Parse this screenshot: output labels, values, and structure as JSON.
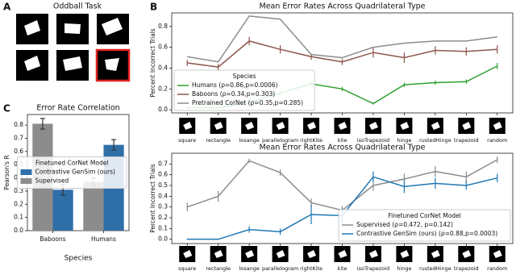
{
  "panel_a": {
    "label": "A",
    "title": "Oddball Task"
  },
  "chart_data": [
    {
      "type": "line",
      "panel": "B",
      "title": "Mean Error Rates Across Quadrilateral Type",
      "y_label": "Percent Incorrect Trials",
      "categories": [
        "square",
        "rectangle",
        "losange",
        "parallelogram",
        "rightKite",
        "kite",
        "isoTrapezoid",
        "hinge",
        "rustedHinge",
        "trapezoid",
        "random"
      ],
      "ylim": [
        -0.03,
        0.93
      ],
      "yticks": [
        {
          "value": 0,
          "label": "0.0"
        },
        0.2,
        0.4,
        0.6,
        0.8
      ],
      "legend": "lower left",
      "legend_title": "Species",
      "series": [
        {
          "name": "Humans (ρ=0.86,p=0.0006)",
          "color": "#2ca02c",
          "values": [
            0.02,
            0.02,
            0.07,
            0.16,
            0.25,
            0.2,
            0.06,
            0.24,
            0.26,
            0.27,
            0.42
          ],
          "errors": [
            0.01,
            0.01,
            0.02,
            0.02,
            0.02,
            0.02,
            0.01,
            0.02,
            0.02,
            0.02,
            0.03
          ]
        },
        {
          "name": "Baboons (ρ=0.34,p=0.303)",
          "color": "#8c564b",
          "values": [
            0.45,
            0.41,
            0.66,
            0.58,
            0.51,
            0.46,
            0.55,
            0.5,
            0.57,
            0.56,
            0.58
          ],
          "errors": [
            0.03,
            0.03,
            0.04,
            0.04,
            0.03,
            0.03,
            0.05,
            0.05,
            0.04,
            0.04,
            0.04
          ]
        },
        {
          "name": "Pretrained CorNet (ρ=0.35,p=0.285)",
          "color": "#8c8c8c",
          "values": [
            0.51,
            0.46,
            0.9,
            0.87,
            0.53,
            0.5,
            0.6,
            0.64,
            0.66,
            0.66,
            0.7
          ]
        }
      ]
    },
    {
      "type": "line",
      "title": "Mean Error Rates Across Quadrilateral Type",
      "y_label": "Percent Incorrect Trials",
      "categories": [
        "square",
        "rectangle",
        "losange",
        "parallelogram",
        "rightKite",
        "kite",
        "isoTrapezoid",
        "hinge",
        "rustedHinge",
        "trapezoid",
        "random"
      ],
      "ylim": [
        -0.04,
        0.8
      ],
      "yticks": [
        {
          "value": 0,
          "label": "0.0"
        },
        0.1,
        0.2,
        0.3,
        0.4,
        0.5,
        0.6,
        0.7
      ],
      "legend": "lower right",
      "legend_title": "Finetuned CorNet Model",
      "series": [
        {
          "name": "Supervised (ρ=0.472, p=0.142)",
          "color": "#8c8c8c",
          "values": [
            0.3,
            0.4,
            0.73,
            0.62,
            0.34,
            0.27,
            0.5,
            0.56,
            0.63,
            0.58,
            0.74
          ],
          "errors": [
            0.04,
            0.05,
            0.02,
            0.03,
            0.04,
            0.04,
            0.05,
            0.05,
            0.05,
            0.05,
            0.03
          ]
        },
        {
          "name": "Contrastive GenSim (ours) (ρ=0.88,p=0.0003)",
          "color": "#1f77b4",
          "values": [
            0.0,
            0.0,
            0.09,
            0.07,
            0.23,
            0.22,
            0.58,
            0.49,
            0.52,
            0.5,
            0.57
          ],
          "errors": [
            0.005,
            0.005,
            0.03,
            0.03,
            0.09,
            0.07,
            0.05,
            0.06,
            0.05,
            0.04,
            0.04
          ]
        }
      ]
    },
    {
      "type": "bar",
      "panel": "C",
      "title": "Error Rate Correlation",
      "y_label": "Pearson's R",
      "x_label": "Species",
      "categories": [
        "Baboons",
        "Humans"
      ],
      "ylim": [
        0,
        0.88
      ],
      "yticks": [
        {
          "value": 0,
          "label": "0.0"
        },
        0.1,
        0.2,
        0.3,
        0.4,
        0.5,
        0.6,
        0.7,
        0.8
      ],
      "legend": "center right",
      "legend_title": "Finetuned CorNet Model",
      "series": [
        {
          "name": "Contrastive GenSim (ours)",
          "color": "#2f6fa8",
          "values": [
            0.31,
            0.65
          ],
          "errors": [
            0.04,
            0.04
          ]
        },
        {
          "name": "Supervised",
          "color": "#8c8c8c",
          "values": [
            0.81,
            0.37
          ],
          "errors": [
            0.04,
            0.03
          ]
        }
      ]
    }
  ]
}
